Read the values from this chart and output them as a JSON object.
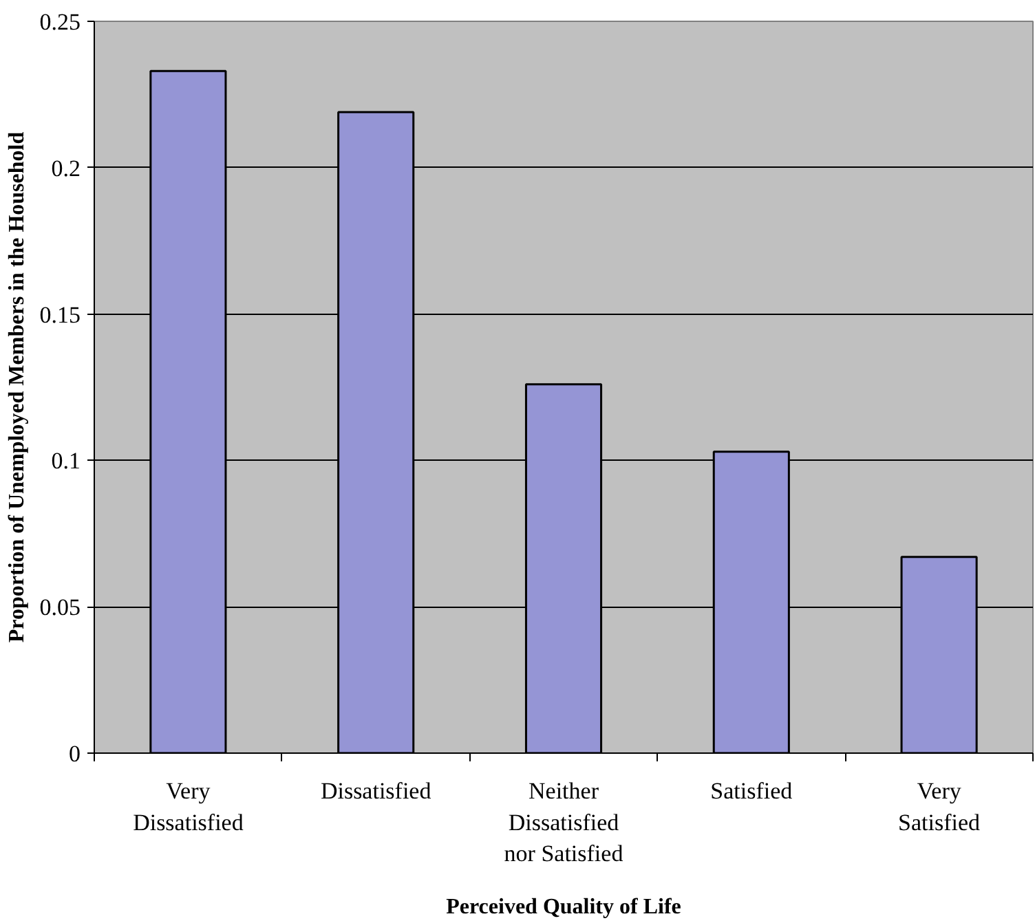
{
  "chart_data": {
    "type": "bar",
    "xlabel": "Perceived Quality of Life",
    "ylabel": "Proportion of Unemployed Members in the Household",
    "categories": [
      "Very Dissatisfied",
      "Dissatisfied",
      "Neither Dissatisfied nor Satisfied",
      "Satisfied",
      "Very Satisfied"
    ],
    "values": [
      0.233,
      0.219,
      0.126,
      0.103,
      0.067
    ],
    "color": "#9595d5",
    "ylim": [
      0,
      0.25
    ],
    "yticks": [
      0,
      0.05,
      0.1,
      0.15,
      0.2,
      0.25
    ],
    "grid": "y"
  }
}
